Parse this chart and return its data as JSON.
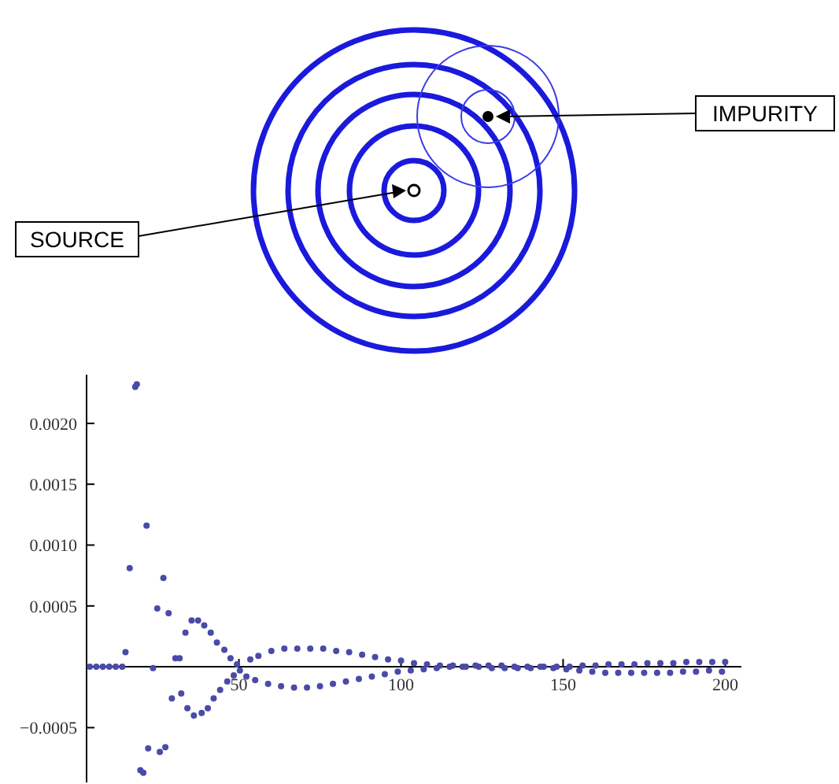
{
  "chart_data": {
    "type": "scatter",
    "annotations": [
      "SOURCE",
      "IMPURITY"
    ],
    "xlim": [
      3,
      205
    ],
    "ylim": [
      -0.00095,
      0.0024
    ],
    "xticks": [
      50,
      100,
      150,
      200
    ],
    "yticks": [
      {
        "value": -0.0005,
        "label": "−0.0005"
      },
      {
        "value": 0.0005,
        "label": "0.0005"
      },
      {
        "value": 0.001,
        "label": "0.0010"
      },
      {
        "value": 0.0015,
        "label": "0.0015"
      },
      {
        "value": 0.002,
        "label": "0.0020"
      }
    ],
    "marker": "circle",
    "grid": false,
    "series": [
      {
        "color": "#4a4aa8",
        "x": [
          4,
          6,
          8,
          10,
          12,
          14,
          15,
          16.3,
          18,
          18.5,
          19.6,
          20.5,
          21.5,
          22,
          23.5,
          24.8,
          25.6,
          26.7,
          27.3,
          28.3,
          29.3,
          30.4,
          31.7,
          32.2,
          33.5,
          34.1,
          35.4,
          36.1,
          37.4,
          38.5,
          39.3,
          40.4,
          41.3,
          42.2,
          43.2,
          44.2,
          45.5,
          46.4,
          47.4,
          48.4,
          49.4,
          50.3,
          52.3,
          53.5
        ],
        "values": [
          0,
          0,
          0,
          0,
          0,
          0,
          0.00012,
          0.00081,
          0.0023,
          0.00232,
          -0.00085,
          -0.00087,
          0.00116,
          -0.00067,
          -1e-05,
          0.00048,
          -0.0007,
          0.00073,
          -0.00066,
          0.00044,
          -0.00026,
          7e-05,
          7e-05,
          -0.00022,
          0.00028,
          -0.00034,
          0.00038,
          -0.0004,
          0.00038,
          -0.00038,
          0.00034,
          -0.00034,
          0.00028,
          -0.00026,
          0.0002,
          -0.00019,
          0.00014,
          -0.00012,
          7e-05,
          -7e-05,
          2e-05,
          -3e-05,
          -8e-05,
          6e-05
        ]
      },
      {
        "color": "#4a4aa8",
        "x": [
          56,
          60,
          64,
          68,
          72,
          76,
          80,
          84,
          88,
          92,
          96,
          100,
          104,
          108,
          112,
          116,
          120,
          124,
          128,
          132,
          136,
          140,
          144,
          148,
          152,
          156,
          160,
          164,
          168,
          172,
          176,
          180,
          184,
          188,
          192,
          196,
          200
        ],
        "values": [
          9e-05,
          0.00013,
          0.00015,
          0.00015,
          0.00015,
          0.00015,
          0.00013,
          0.00012,
          0.0001,
          8e-05,
          6e-05,
          5e-05,
          3e-05,
          2e-05,
          1e-05,
          1e-05,
          0,
          0,
          -1e-05,
          -1e-05,
          -1e-05,
          -1e-05,
          0,
          0,
          0,
          1e-05,
          1e-05,
          2e-05,
          2e-05,
          2e-05,
          3e-05,
          3e-05,
          3e-05,
          4e-05,
          4e-05,
          4e-05,
          4e-05
        ]
      },
      {
        "color": "#4a4aa8",
        "x": [
          55,
          59,
          63,
          67,
          71,
          75,
          79,
          83,
          87,
          91,
          95,
          99,
          103,
          107,
          111,
          115,
          119,
          123,
          127,
          131,
          135,
          139,
          143,
          147,
          151,
          155,
          159,
          163,
          167,
          171,
          175,
          179,
          183,
          187,
          191,
          195,
          199
        ],
        "values": [
          -0.00011,
          -0.00014,
          -0.00016,
          -0.00017,
          -0.00017,
          -0.00016,
          -0.00014,
          -0.00012,
          -0.0001,
          -8e-05,
          -6e-05,
          -4e-05,
          -3e-05,
          -2e-05,
          -1e-05,
          0,
          0,
          1e-05,
          1e-05,
          1e-05,
          0,
          0,
          0,
          -1e-05,
          -2e-05,
          -3e-05,
          -4e-05,
          -5e-05,
          -5e-05,
          -5e-05,
          -5e-05,
          -5e-05,
          -5e-05,
          -4e-05,
          -4e-05,
          -3e-05,
          -4e-05
        ]
      }
    ]
  }
}
